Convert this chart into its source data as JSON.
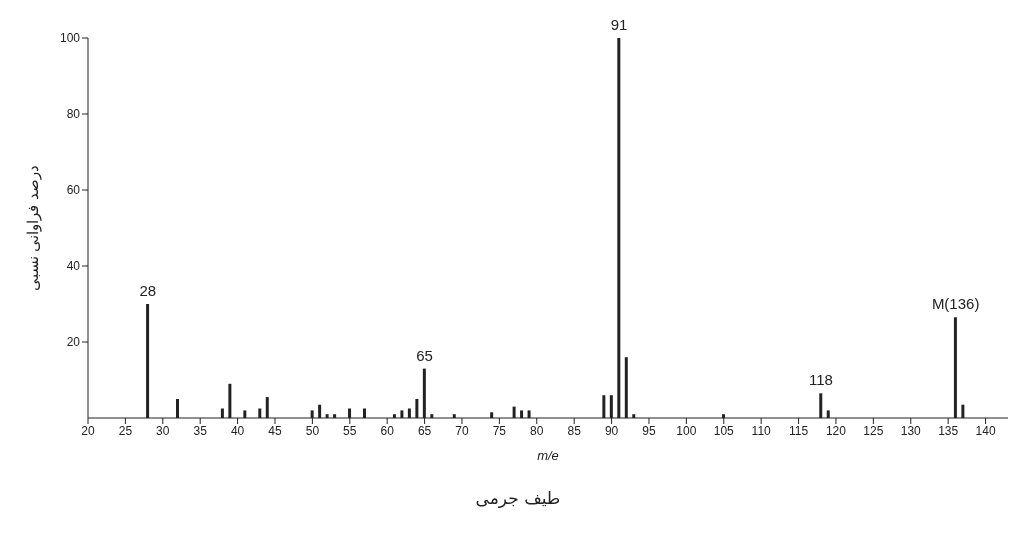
{
  "chart_data": {
    "type": "bar",
    "xlabel": "m/e",
    "ylabel": "درصد فراوانی نسبی",
    "x": [
      28,
      32,
      38,
      39,
      41,
      43,
      44,
      50,
      51,
      52,
      53,
      55,
      57,
      61,
      62,
      63,
      64,
      65,
      66,
      69,
      74,
      77,
      78,
      79,
      89,
      90,
      91,
      92,
      93,
      105,
      118,
      119,
      136,
      137
    ],
    "values": [
      30,
      5,
      2.5,
      9,
      2,
      2.5,
      5.5,
      2,
      3.5,
      1,
      1,
      2.5,
      2.5,
      1,
      2,
      2.5,
      5,
      13,
      1,
      1,
      1.5,
      3,
      2,
      2,
      6,
      6,
      100,
      16,
      1,
      1,
      6.5,
      2,
      26.5,
      3.5
    ],
    "color": "#222222",
    "xlim": [
      20,
      143
    ],
    "xticks": [
      20,
      25,
      30,
      35,
      40,
      45,
      50,
      55,
      60,
      65,
      70,
      75,
      80,
      85,
      90,
      95,
      100,
      105,
      110,
      115,
      120,
      125,
      130,
      135,
      140
    ],
    "ylim": [
      0,
      100
    ],
    "yticks": [
      20,
      40,
      60,
      80,
      100
    ],
    "grid": false,
    "annotations": [
      {
        "text": "28",
        "x": 28,
        "y": 30
      },
      {
        "text": "65",
        "x": 65,
        "y": 13
      },
      {
        "text": "91",
        "x": 91,
        "y": 100
      },
      {
        "text": "118",
        "x": 118,
        "y": 6.5
      },
      {
        "text": "M(136)",
        "x": 136,
        "y": 26.5
      },
      "طیف جرمی"
    ]
  }
}
